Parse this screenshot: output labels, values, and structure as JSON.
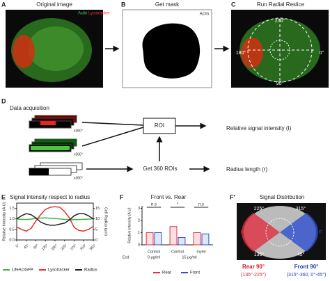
{
  "figure": {
    "a": {
      "letter": "A",
      "title": "Original image",
      "legend": [
        "Actin",
        "Lysotracker"
      ]
    },
    "b": {
      "letter": "B",
      "title": "Get mask",
      "label": "Actin"
    },
    "c": {
      "letter": "C",
      "title": "Run Radial Reslice",
      "angles": [
        "270°",
        "180°",
        "0°",
        "90°"
      ]
    },
    "d": {
      "letter": "D",
      "title": "Data acquisition",
      "stack_labels": [
        "x360°",
        "x360°",
        "x360°"
      ],
      "roi": "ROI",
      "get_rois": "Get 360 ROIs",
      "output_intensity": "Relative signal intensity (I)",
      "output_radius": "Radius length (r)"
    },
    "f_prime": {
      "letter": "F'",
      "title": "Signal Distribution",
      "angles": [
        "225°",
        "315°",
        "135°",
        "45°"
      ],
      "side_labels": [
        "R",
        "F"
      ],
      "rear": "Rear 90°",
      "rear_range": "(135°-225°)",
      "front": "Front 90°",
      "front_range": "(315°-360, 0°-45°)"
    }
  },
  "chart_data": [
    {
      "panel": "E",
      "type": "line",
      "title": "Signal intensity respect to radius",
      "y_label": "Relative Intensity (A.U)",
      "y2_label": "Cell Radius (μm)",
      "x": [
        0,
        22.5,
        45,
        67.5,
        90,
        112.5,
        135,
        157.5,
        180,
        202.5,
        225,
        247.5,
        270,
        292.5,
        315,
        337.5,
        360
      ],
      "xlim": [
        0,
        360
      ],
      "xticks": [
        {
          "value": 0,
          "label": "0°"
        },
        {
          "value": 45,
          "label": "45°"
        },
        {
          "value": 90,
          "label": "90°"
        },
        {
          "value": 135,
          "label": "135°"
        },
        {
          "value": 180,
          "label": "180°"
        },
        {
          "value": 225,
          "label": "225°"
        },
        {
          "value": 270,
          "label": "270°"
        },
        {
          "value": 315,
          "label": "315°"
        },
        {
          "value": 360,
          "label": "360°"
        }
      ],
      "ylim": [
        0,
        1.75
      ],
      "yticks": [
        {
          "value": 0,
          "label": "0.0"
        },
        0.5,
        {
          "value": 1,
          "label": "1.0"
        },
        1.5
      ],
      "y2lim": [
        0,
        17.5
      ],
      "y2ticks": [
        0,
        5,
        10,
        15
      ],
      "series": [
        {
          "name": "LifeActGFP",
          "color": "#3cb44b",
          "values": [
            1.0,
            0.98,
            0.97,
            0.99,
            1.02,
            1.04,
            1.05,
            1.03,
            1.02,
            1.0,
            0.98,
            0.97,
            0.96,
            0.97,
            0.98,
            0.99,
            1.0
          ]
        },
        {
          "name": "Lysotracker",
          "color": "#e03030",
          "values": [
            0.62,
            0.5,
            0.42,
            0.55,
            0.9,
            1.2,
            1.45,
            1.55,
            1.58,
            1.55,
            1.35,
            1.05,
            0.6,
            0.45,
            0.42,
            0.5,
            0.65
          ]
        },
        {
          "name": "Radius",
          "color": "#222222",
          "axis": "y2",
          "values": [
            10,
            11.5,
            12.5,
            12,
            10.5,
            8.5,
            7.5,
            7,
            7,
            7.5,
            8,
            9.5,
            11.5,
            12.5,
            12.5,
            11.5,
            10
          ]
        }
      ]
    },
    {
      "panel": "F",
      "type": "bar",
      "title": "Front vs. Rear",
      "y_label": "Relative Intensity (A.U)",
      "categories": [
        "Control",
        "Control",
        "Inyml"
      ],
      "row_label": "Ecd",
      "doses": [
        "0 μg/ml",
        "15 μg/ml"
      ],
      "significance": [
        "n.s",
        "*",
        "n.s"
      ],
      "ylim": [
        0,
        3.2
      ],
      "yticks": [
        0,
        1,
        2,
        3
      ],
      "series": [
        {
          "name": "Rear",
          "color": "#e03040",
          "values": [
            1.0,
            1.5,
            1.0
          ]
        },
        {
          "name": "Front",
          "color": "#3050d0",
          "values": [
            1.0,
            0.6,
            0.9
          ]
        }
      ]
    }
  ]
}
